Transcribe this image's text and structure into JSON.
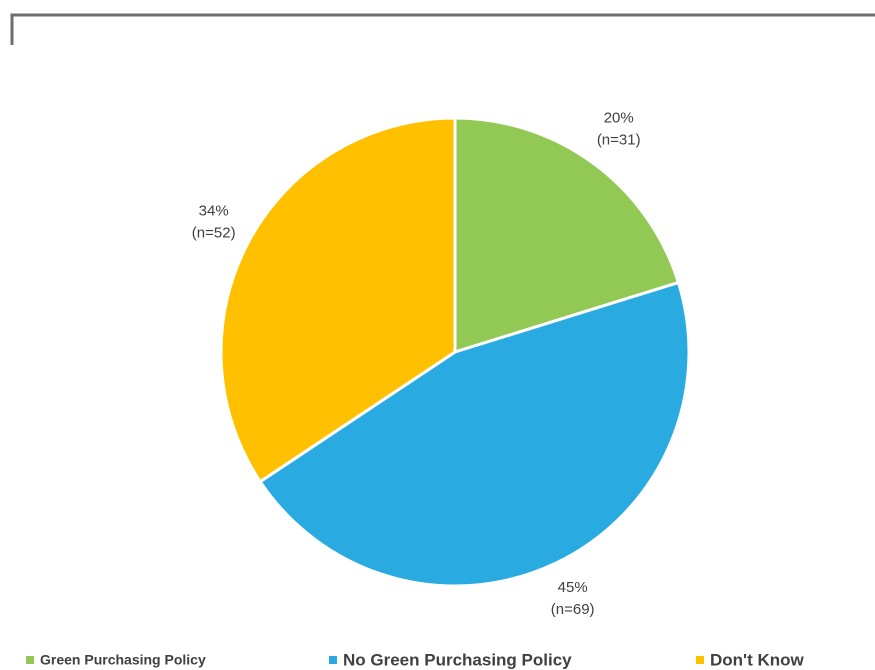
{
  "chart_data": {
    "type": "pie",
    "categories": [
      "Green Purchasing Policy",
      "No Green Purchasing Policy",
      "Don't Know"
    ],
    "values": [
      20,
      45,
      34
    ],
    "value_labels": [
      "20%",
      "45%",
      "34%"
    ],
    "count_labels": [
      "(n=31)",
      "(n=69)",
      "(n=52)"
    ],
    "colors": [
      "#92c955",
      "#29abe2",
      "#ffc000"
    ],
    "legend": "bottom"
  }
}
